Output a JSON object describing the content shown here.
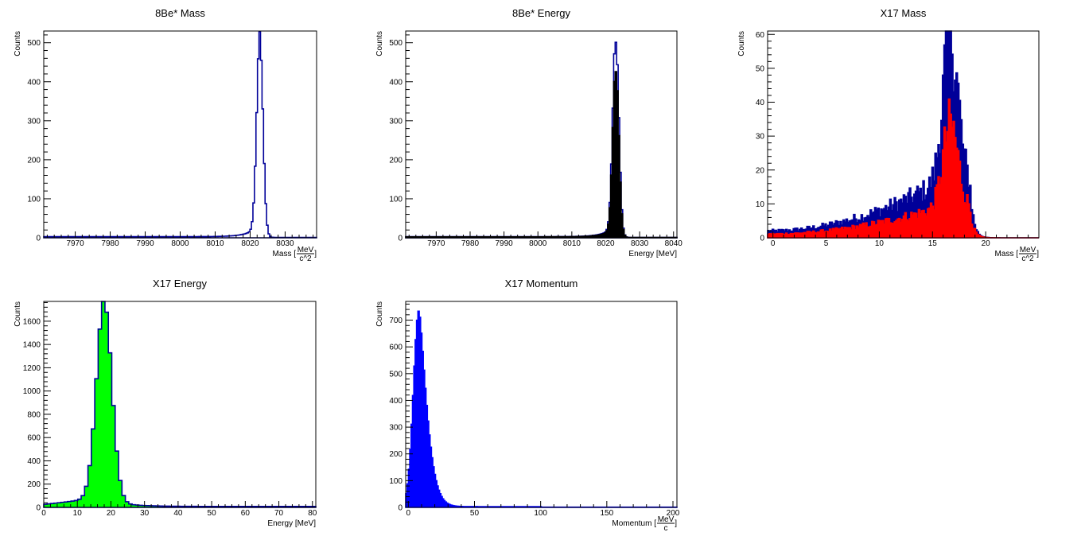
{
  "chart_data": [
    {
      "type": "histogram",
      "title": "8Be* Mass",
      "ylabel": "Counts",
      "xlabel_prefix": "Mass [",
      "xlabel_num": "MeV",
      "xlabel_den": "c^2",
      "xlabel_suffix": "]",
      "xlim": [
        7961,
        8039
      ],
      "ylim": [
        0,
        530
      ],
      "xticks": [
        7970,
        7980,
        7990,
        8000,
        8010,
        8020,
        8030
      ],
      "yticks": [
        0,
        100,
        200,
        300,
        400,
        500
      ],
      "peak": {
        "center": 8022.8,
        "width": 0.9,
        "amplitude": 497
      },
      "base_level": 3,
      "series": [
        {
          "values_description": "sharp peak near 8022-8024",
          "line_color": "#000099",
          "fill_color": "none"
        }
      ]
    },
    {
      "type": "histogram",
      "title": "8Be* Energy",
      "ylabel": "Counts",
      "xlabel_prefix": "Energy [MeV]",
      "xlabel_num": "",
      "xlabel_den": "",
      "xlabel_suffix": "",
      "xlim": [
        7961,
        8041
      ],
      "ylim": [
        0,
        530
      ],
      "xticks": [
        7970,
        7980,
        7990,
        8000,
        8010,
        8020,
        8030,
        8040
      ],
      "yticks": [
        0,
        100,
        200,
        300,
        400,
        500
      ],
      "peak": {
        "center": 8023.0,
        "width": 0.9,
        "amplitude": 500
      },
      "base_level": 3,
      "series": [
        {
          "line_color": "#000099",
          "fill_color": "none",
          "scale": 1.0
        },
        {
          "line_color": "#000000",
          "fill_color": "#000000",
          "scale": 0.85
        }
      ]
    },
    {
      "type": "histogram",
      "title": "X17 Mass",
      "ylabel": "Counts",
      "xlabel_prefix": "Mass [",
      "xlabel_num": "MeV",
      "xlabel_den": "c^2",
      "xlabel_suffix": "]",
      "xlim": [
        -0.5,
        25
      ],
      "ylim": [
        0,
        61
      ],
      "xticks": [
        0,
        5,
        10,
        15,
        20
      ],
      "yticks": [
        0,
        10,
        20,
        30,
        40,
        50,
        60
      ],
      "peak": {
        "center": 16.7,
        "width": 0.7,
        "amplitude": 45
      },
      "base_level": 2,
      "series": [
        {
          "line_color": "#000099",
          "fill_color": "#000099",
          "scale": 1.0
        },
        {
          "line_color": "#ff0000",
          "fill_color": "#ff0000",
          "scale": 0.55
        }
      ]
    },
    {
      "type": "histogram",
      "title": "X17 Energy",
      "ylabel": "Counts",
      "xlabel_prefix": "Energy [MeV]",
      "xlabel_num": "",
      "xlabel_den": "",
      "xlabel_suffix": "",
      "xlim": [
        0,
        81
      ],
      "ylim": [
        0,
        1770
      ],
      "xticks": [
        0,
        10,
        20,
        30,
        40,
        50,
        60,
        70,
        80
      ],
      "yticks": [
        0,
        200,
        400,
        600,
        800,
        1000,
        1200,
        1400,
        1600
      ],
      "peak": {
        "center": 18,
        "width": 2.3,
        "amplitude": 1700
      },
      "base_level": 20,
      "series": [
        {
          "line_color": "#000099",
          "fill_color": "#00ff00",
          "scale": 1.0
        }
      ]
    },
    {
      "type": "histogram",
      "title": "X17 Momentum",
      "ylabel": "Counts",
      "xlabel_prefix": "Momentum [",
      "xlabel_num": "MeV",
      "xlabel_den": "c",
      "xlabel_suffix": "]",
      "xlim": [
        -2,
        203
      ],
      "ylim": [
        0,
        770
      ],
      "xticks": [
        0,
        50,
        100,
        150,
        200
      ],
      "yticks": [
        0,
        100,
        200,
        300,
        400,
        500,
        600,
        700
      ],
      "peak": {
        "center": 8,
        "width": 4.5,
        "amplitude": 735
      },
      "base_level": 2,
      "series": [
        {
          "line_color": "#0000ff",
          "fill_color": "#0000ff",
          "scale": 1.0
        }
      ]
    }
  ]
}
